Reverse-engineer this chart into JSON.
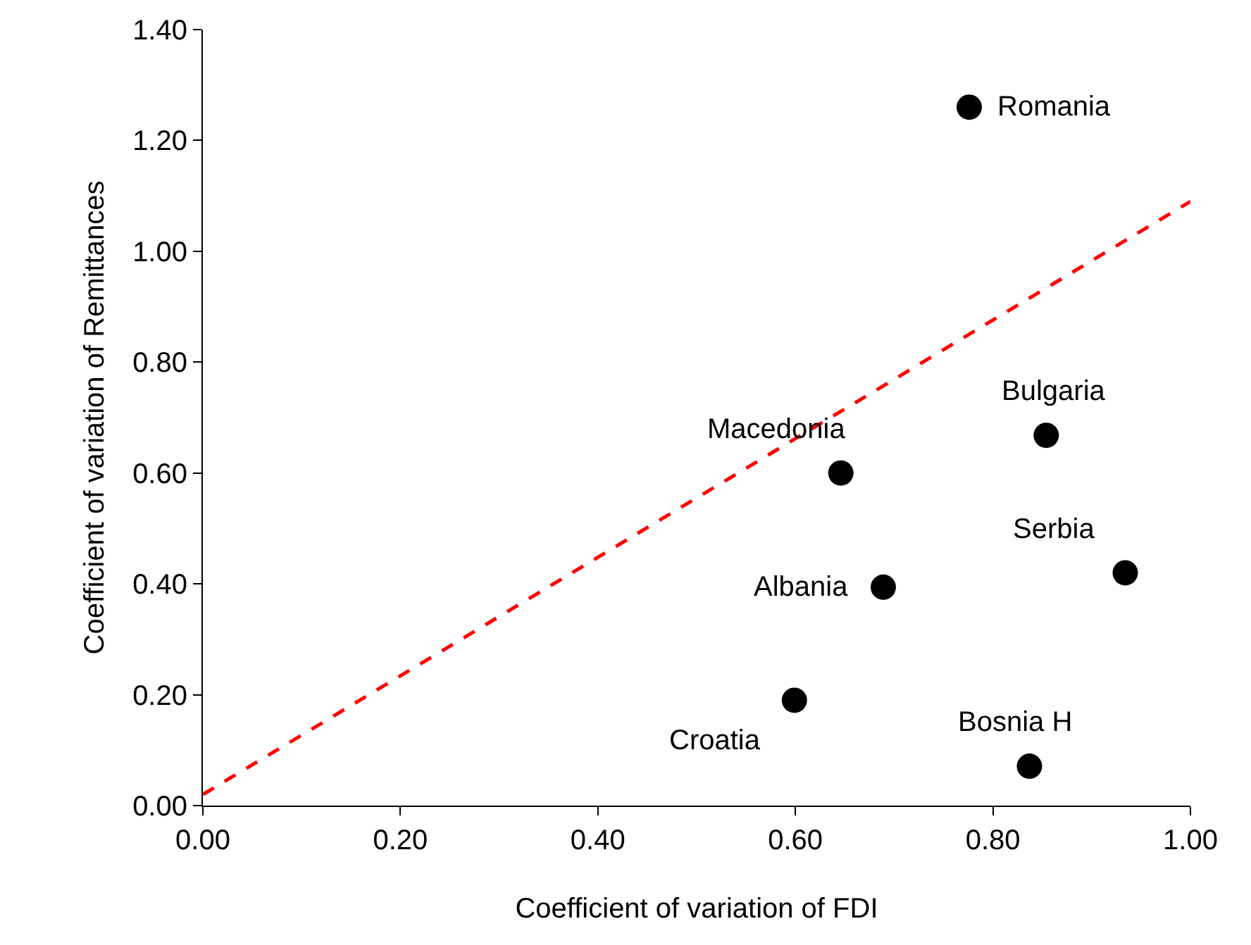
{
  "chart_data": {
    "type": "scatter",
    "xlabel": "Coefficient of variation of FDI",
    "ylabel": "Coefficient of variation of Remittances",
    "x": [
      0.776,
      0.854,
      0.646,
      0.934,
      0.689,
      0.599,
      0.837
    ],
    "series": [
      {
        "color": "#000000",
        "values": [
          1.26,
          0.668,
          0.6,
          0.42,
          0.394,
          0.19,
          0.071
        ],
        "marker": "circle"
      },
      {
        "type": "line",
        "color": "#ff0000",
        "line_style": "dashed",
        "marker": "none",
        "x": [
          0,
          1
        ],
        "values": [
          0.02,
          1.09
        ]
      }
    ],
    "annotations": [
      {
        "text": "Romania",
        "x": 0.776,
        "y": 1.26
      },
      {
        "text": "Bulgaria",
        "x": 0.854,
        "y": 0.668
      },
      {
        "text": "Macedonia",
        "x": 0.646,
        "y": 0.6
      },
      {
        "text": "Serbia",
        "x": 0.934,
        "y": 0.42
      },
      {
        "text": "Albania",
        "x": 0.689,
        "y": 0.394
      },
      {
        "text": "Croatia",
        "x": 0.599,
        "y": 0.19
      },
      {
        "text": "Bosnia H",
        "x": 0.837,
        "y": 0.071
      }
    ],
    "xlim": [
      0,
      1
    ],
    "ylim": [
      0,
      1.4
    ],
    "xticks": [
      {
        "value": 0,
        "label": "0.00"
      },
      {
        "value": 0.2,
        "label": "0.20"
      },
      {
        "value": 0.4,
        "label": "0.40"
      },
      {
        "value": 0.6,
        "label": "0.60"
      },
      {
        "value": 0.8,
        "label": "0.80"
      },
      {
        "value": 1,
        "label": "1.00"
      }
    ],
    "yticks": [
      {
        "value": 0,
        "label": "0.00"
      },
      {
        "value": 0.2,
        "label": "0.20"
      },
      {
        "value": 0.4,
        "label": "0.40"
      },
      {
        "value": 0.6,
        "label": "0.60"
      },
      {
        "value": 0.8,
        "label": "0.80"
      },
      {
        "value": 1,
        "label": "1.00"
      },
      {
        "value": 1.2,
        "label": "1.20"
      },
      {
        "value": 1.4,
        "label": "1.40"
      }
    ],
    "tick_labels": "xy"
  }
}
